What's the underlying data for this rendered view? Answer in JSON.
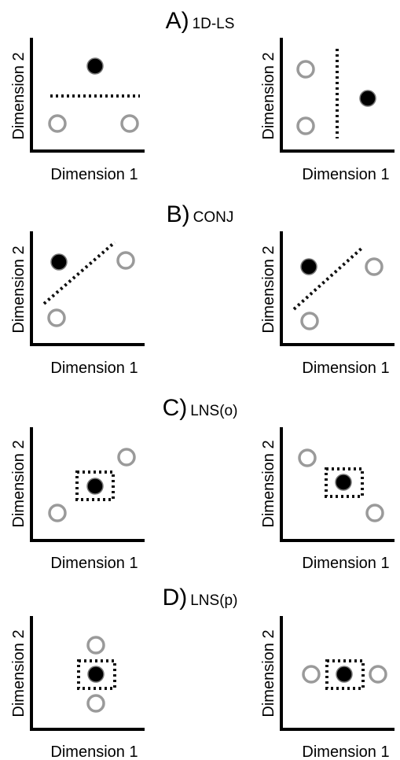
{
  "xlabel": "Dimension 1",
  "ylabel": "Dimension 2",
  "sections": [
    {
      "letter": "A)",
      "name": "1D-LS"
    },
    {
      "letter": "B)",
      "name": "CONJ"
    },
    {
      "letter": "C)",
      "name": "LNS(o)"
    },
    {
      "letter": "D)",
      "name": "LNS(p)"
    }
  ],
  "colors": {
    "filled": "#000000",
    "open_stroke": "#9a9a9a",
    "axis": "#000000",
    "boundary": "#111111"
  }
}
